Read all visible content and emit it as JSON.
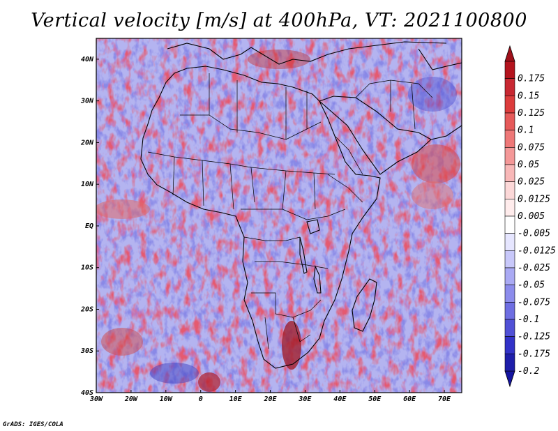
{
  "title": "Vertical velocity [m/s] at 400hPa, VT: 2021100800",
  "credit": "GrADS: IGES/COLA",
  "map": {
    "lon_range": [
      -30,
      75
    ],
    "lat_range": [
      -40,
      45
    ],
    "lon_ticks": [
      {
        "value": -30,
        "label": "30W"
      },
      {
        "value": -20,
        "label": "20W"
      },
      {
        "value": -10,
        "label": "10W"
      },
      {
        "value": 0,
        "label": "0"
      },
      {
        "value": 10,
        "label": "10E"
      },
      {
        "value": 20,
        "label": "20E"
      },
      {
        "value": 30,
        "label": "30E"
      },
      {
        "value": 40,
        "label": "40E"
      },
      {
        "value": 50,
        "label": "50E"
      },
      {
        "value": 60,
        "label": "60E"
      },
      {
        "value": 70,
        "label": "70E"
      }
    ],
    "lat_ticks": [
      {
        "value": 40,
        "label": "40N"
      },
      {
        "value": 30,
        "label": "30N"
      },
      {
        "value": 20,
        "label": "20N"
      },
      {
        "value": 10,
        "label": "10N"
      },
      {
        "value": 0,
        "label": "EQ"
      },
      {
        "value": -10,
        "label": "10S"
      },
      {
        "value": -20,
        "label": "20S"
      },
      {
        "value": -30,
        "label": "30S"
      },
      {
        "value": -40,
        "label": "40S"
      }
    ],
    "positive_color": "#c81e28",
    "negative_color": "#3c3cc8"
  },
  "colorbar": {
    "levels": [
      {
        "label": "0.175",
        "color": "#b4141e"
      },
      {
        "label": "0.15",
        "color": "#c82832"
      },
      {
        "label": "0.125",
        "color": "#dc3c3c"
      },
      {
        "label": "0.1",
        "color": "#e65a5a"
      },
      {
        "label": "0.075",
        "color": "#ee7878"
      },
      {
        "label": "0.05",
        "color": "#f49898"
      },
      {
        "label": "0.025",
        "color": "#f8b8b8"
      },
      {
        "label": "0.0125",
        "color": "#fcd8d8"
      },
      {
        "label": "0.005",
        "color": "#ffecec"
      },
      {
        "label": "-0.005",
        "color": "#ffffff"
      },
      {
        "label": "-0.0125",
        "color": "#e6e6ff"
      },
      {
        "label": "-0.025",
        "color": "#c8c8fa"
      },
      {
        "label": "-0.05",
        "color": "#aaaaf4"
      },
      {
        "label": "-0.075",
        "color": "#8c8cec"
      },
      {
        "label": "-0.1",
        "color": "#6e6ee2"
      },
      {
        "label": "-0.125",
        "color": "#5050d6"
      },
      {
        "label": "-0.175",
        "color": "#3232c8"
      },
      {
        "label": "-0.2",
        "color": "#1e1eaa"
      }
    ],
    "top_color": "#a0101a",
    "bottom_color": "#1414a0"
  }
}
